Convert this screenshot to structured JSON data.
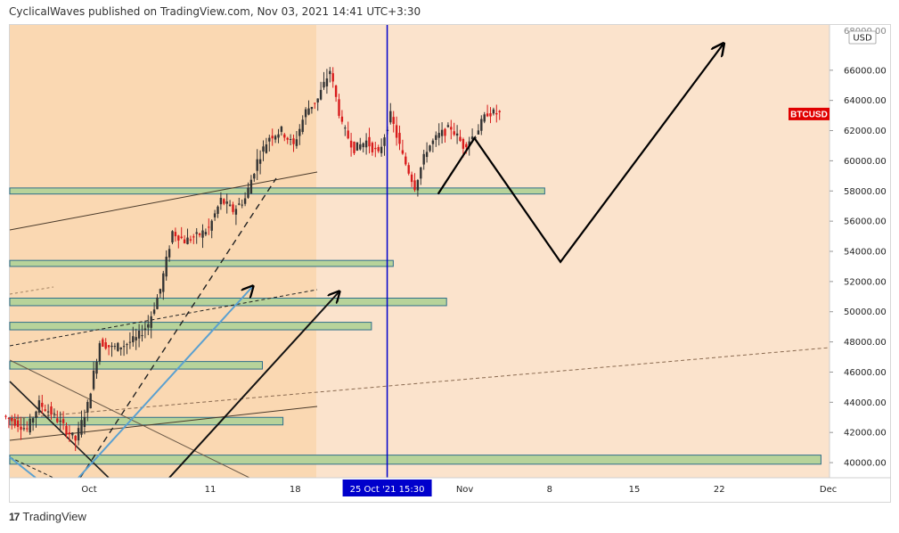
{
  "header": {
    "publish_line": "CyclicalWaves published on TradingView.com, Nov 03, 2021 14:41 UTC+3:30"
  },
  "footer": {
    "brand": "TradingView",
    "logo_glyph": "17"
  },
  "chart_data": {
    "type": "candlestick",
    "symbol": "BTCUSD",
    "currency": "USD",
    "background": "#fbe3cc",
    "colors": {
      "up": "#333333",
      "down": "#d81b1b",
      "zone_fill": "#b7d39a",
      "zone_stroke": "#2f6f8a",
      "crosshair": "#0000cc",
      "price_label": "#e00000"
    },
    "ylim": [
      39000,
      69000
    ],
    "y_ticks": [
      40000,
      42000,
      44000,
      46000,
      48000,
      50000,
      52000,
      54000,
      56000,
      58000,
      60000,
      62000,
      64000,
      66000
    ],
    "y_tick_labels": [
      "40000.00",
      "42000.00",
      "44000.00",
      "46000.00",
      "48000.00",
      "50000.00",
      "52000.00",
      "54000.00",
      "56000.00",
      "58000.00",
      "60000.00",
      "62000.00",
      "64000.00",
      "66000.00"
    ],
    "top_cut_label": "68000.00",
    "x_range_days": [
      -7.2,
      61.5
    ],
    "x_ticks": [
      {
        "label": "Oct",
        "day": 0
      },
      {
        "label": "11",
        "day": 10
      },
      {
        "label": "18",
        "day": 17
      },
      {
        "label": "Nov",
        "day": 31
      },
      {
        "label": "8",
        "day": 38
      },
      {
        "label": "15",
        "day": 45
      },
      {
        "label": "22",
        "day": 52
      },
      {
        "label": "Dec",
        "day": 61
      }
    ],
    "crosshair": {
      "day": 24.6,
      "label": "25 Oct '21   15:30"
    },
    "last_price_label": "BTCUSD",
    "last_price": 63100,
    "daily_closes": [
      [
        -7,
        43100
      ],
      [
        -6,
        42700
      ],
      [
        -5,
        42200
      ],
      [
        -4,
        43900
      ],
      [
        -3,
        43300
      ],
      [
        -2,
        42400
      ],
      [
        -1,
        41500
      ],
      [
        0,
        43800
      ],
      [
        1,
        48000
      ],
      [
        2,
        47600
      ],
      [
        3,
        47800
      ],
      [
        4,
        48200
      ],
      [
        5,
        49200
      ],
      [
        6,
        51500
      ],
      [
        7,
        55300
      ],
      [
        8,
        54700
      ],
      [
        9,
        55000
      ],
      [
        10,
        55500
      ],
      [
        11,
        57400
      ],
      [
        12,
        56700
      ],
      [
        13,
        57500
      ],
      [
        14,
        60000
      ],
      [
        15,
        61600
      ],
      [
        16,
        62000
      ],
      [
        17,
        61000
      ],
      [
        18,
        63300
      ],
      [
        19,
        64100
      ],
      [
        20,
        66000
      ],
      [
        21,
        62300
      ],
      [
        22,
        60800
      ],
      [
        23,
        61300
      ],
      [
        24,
        60400
      ],
      [
        25,
        63000
      ],
      [
        26,
        60300
      ],
      [
        27,
        58300
      ],
      [
        28,
        60800
      ],
      [
        29,
        61700
      ],
      [
        30,
        62200
      ],
      [
        31,
        61000
      ],
      [
        32,
        61800
      ],
      [
        33,
        63200
      ],
      [
        34,
        63100
      ]
    ],
    "zones": [
      {
        "low": 57800,
        "high": 58200,
        "from_day": -7.2,
        "to_day": 37.6
      },
      {
        "low": 53000,
        "high": 53400,
        "from_day": -7.2,
        "to_day": 25.1
      },
      {
        "low": 50400,
        "high": 50900,
        "from_day": -7.2,
        "to_day": 29.5
      },
      {
        "low": 48800,
        "high": 49300,
        "from_day": -7.2,
        "to_day": 23.3
      },
      {
        "low": 46200,
        "high": 46700,
        "from_day": -7.2,
        "to_day": 14.3
      },
      {
        "low": 42500,
        "high": 43000,
        "from_day": -7.2,
        "to_day": 16.0
      },
      {
        "low": 39900,
        "high": 40500,
        "from_day": -7.2,
        "to_day": 60.4
      }
    ],
    "projection_path": [
      [
        28.8,
        57800
      ],
      [
        31.8,
        61500
      ],
      [
        38.9,
        53300
      ],
      [
        52.3,
        67700
      ]
    ]
  }
}
